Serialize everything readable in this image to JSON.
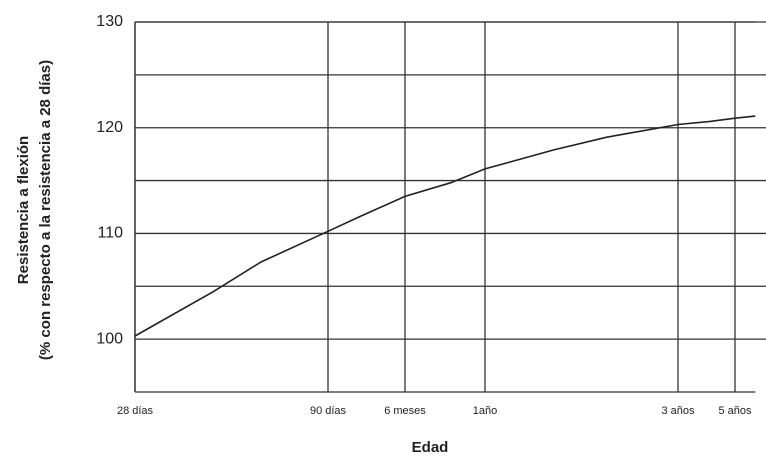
{
  "chart_data": {
    "type": "line",
    "x_label": "Edad",
    "y_label": [
      "Resistencia a flexión",
      "(% con respecto a la resistencia a 28 días)"
    ],
    "x": [
      28,
      45,
      60,
      90,
      120,
      180,
      270,
      365,
      540,
      730,
      1095,
      1460,
      1825,
      2190
    ],
    "series": [
      {
        "color": "#222222",
        "values": [
          100.3,
          104.5,
          107.3,
          110.2,
          111.6,
          113.5,
          114.8,
          116.1,
          117.9,
          119.1,
          120.3,
          120.6,
          120.9,
          121.1
        ]
      }
    ],
    "xlim": [
      28,
      2190
    ],
    "xticks": [
      {
        "value": 28,
        "label": "28 días"
      },
      {
        "value": 90,
        "label": "90 días"
      },
      {
        "value": 180,
        "label": "6 meses"
      },
      {
        "value": 365,
        "label": "1año"
      },
      {
        "value": 1095,
        "label": "3 años"
      },
      {
        "value": 1825,
        "label": "5 años"
      }
    ],
    "ylim": [
      95,
      130
    ],
    "yticks": [
      100,
      110,
      120,
      130
    ],
    "y_minor_grid": [
      105,
      115,
      125
    ],
    "grid": true
  }
}
